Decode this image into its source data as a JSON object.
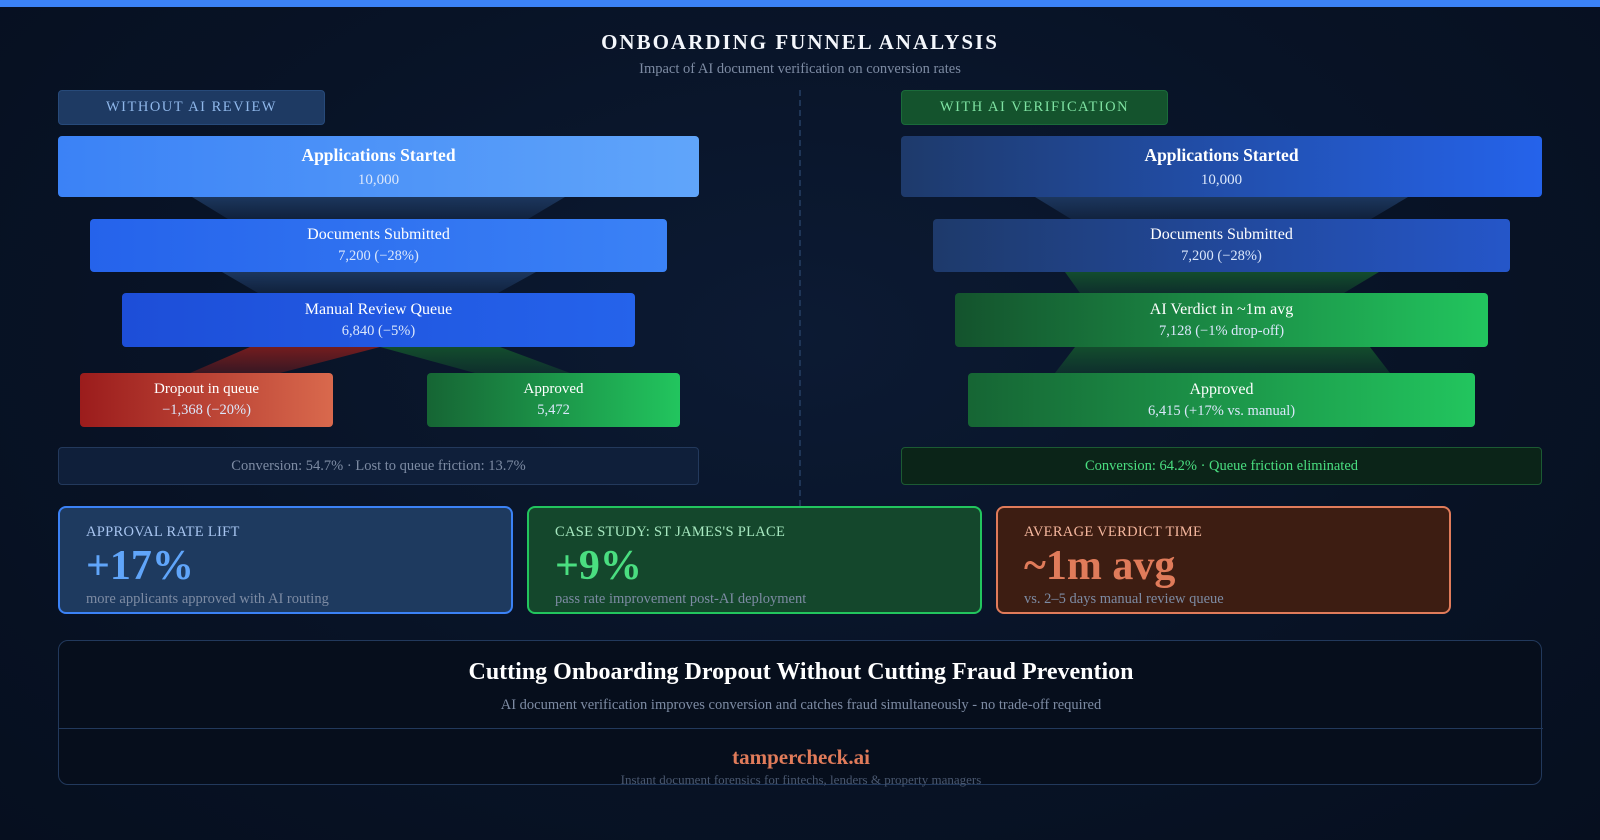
{
  "header": {
    "title": "ONBOARDING FUNNEL ANALYSIS",
    "subtitle": "Impact of AI document verification on conversion rates"
  },
  "left_funnel": {
    "tag": "WITHOUT AI REVIEW",
    "stages": [
      {
        "name": "Applications Started",
        "value": "10,000"
      },
      {
        "name": "Documents Submitted",
        "value": "7,200 (−28%)"
      },
      {
        "name": "Manual Review Queue",
        "value": "6,840 (−5%)"
      }
    ],
    "dropout": {
      "name": "Dropout in queue",
      "value": "−1,368 (−20%)"
    },
    "approved": {
      "name": "Approved",
      "value": "5,472"
    },
    "conversion": "Conversion: 54.7% · Lost to queue friction: 13.7%"
  },
  "right_funnel": {
    "tag": "WITH AI VERIFICATION",
    "stages": [
      {
        "name": "Applications Started",
        "value": "10,000"
      },
      {
        "name": "Documents Submitted",
        "value": "7,200 (−28%)"
      },
      {
        "name": "AI Verdict in ~1m avg",
        "value": "7,128 (−1% drop-off)"
      },
      {
        "name": "Approved",
        "value": "6,415 (+17% vs. manual)"
      }
    ],
    "conversion": "Conversion: 64.2% · Queue friction eliminated"
  },
  "stats": [
    {
      "label": "APPROVAL RATE LIFT",
      "value": "+17%",
      "desc": "more applicants approved with AI routing",
      "color": "#60a5fa"
    },
    {
      "label": "CASE STUDY: ST JAMES'S PLACE",
      "value": "+9%",
      "desc": "pass rate improvement post-AI deployment",
      "color": "#4ade80"
    },
    {
      "label": "AVERAGE VERDICT TIME",
      "value": "~1m avg",
      "desc": "vs. 2–5 days manual review queue",
      "color": "#e07b5a"
    }
  ],
  "cta": {
    "headline": "Cutting Onboarding Dropout Without Cutting Fraud Prevention",
    "sub": "AI document verification improves conversion and catches fraud simultaneously - no trade-off required",
    "brand": "tampercheck.ai",
    "tagline": "Instant document forensics for fintechs, lenders & property managers"
  },
  "colors": {
    "accent_blue": "#3b82f6",
    "accent_green": "#22c55e",
    "accent_orange": "#e07b5a",
    "dropout_red": "#a11d1d"
  }
}
